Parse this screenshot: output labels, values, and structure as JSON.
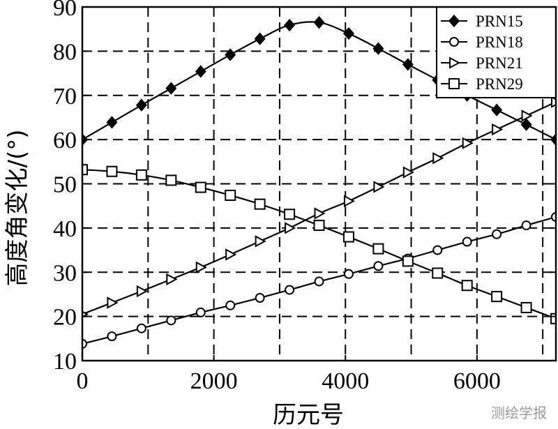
{
  "chart_data": {
    "type": "line",
    "xlabel": "历元号",
    "ylabel": "高度角变化/(°)",
    "xlim": [
      0,
      7200
    ],
    "ylim": [
      10,
      90
    ],
    "xticks": [
      0,
      2000,
      4000,
      6000
    ],
    "yticks": [
      10,
      20,
      30,
      40,
      50,
      60,
      70,
      80,
      90
    ],
    "grid": true,
    "legend_position": "top-right",
    "series": [
      {
        "name": "PRN15",
        "marker": "diamond-filled",
        "x": [
          0,
          450,
          900,
          1350,
          1800,
          2250,
          2700,
          3150,
          3600,
          4050,
          4500,
          4950,
          5400,
          5850,
          6300,
          6750,
          7200
        ],
        "y": [
          60.0,
          63.9,
          67.8,
          71.6,
          75.4,
          79.2,
          82.8,
          85.9,
          86.5,
          84.0,
          80.6,
          77.0,
          73.5,
          70.0,
          66.7,
          63.4,
          60.0
        ]
      },
      {
        "name": "PRN18",
        "marker": "circle-open",
        "x": [
          0,
          450,
          900,
          1350,
          1800,
          2250,
          2700,
          3150,
          3600,
          4050,
          4500,
          4950,
          5400,
          5850,
          6300,
          6750,
          7200
        ],
        "y": [
          13.8,
          15.5,
          17.3,
          19.1,
          20.9,
          22.5,
          24.2,
          26.0,
          27.9,
          29.6,
          31.4,
          33.1,
          35.0,
          36.9,
          38.6,
          40.6,
          42.5
        ]
      },
      {
        "name": "PRN21",
        "marker": "triangle-right-open",
        "x": [
          0,
          450,
          900,
          1350,
          1800,
          2250,
          2700,
          3150,
          3600,
          4050,
          4500,
          4950,
          5400,
          5850,
          6300,
          6750,
          7200
        ],
        "y": [
          20.5,
          23.1,
          25.7,
          28.4,
          31.1,
          34.0,
          37.0,
          40.0,
          43.3,
          46.1,
          49.3,
          52.6,
          55.8,
          59.2,
          62.3,
          65.4,
          68.5
        ]
      },
      {
        "name": "PRN29",
        "marker": "square-open",
        "x": [
          0,
          450,
          900,
          1350,
          1800,
          2250,
          2700,
          3150,
          3600,
          4050,
          4500,
          4950,
          5400,
          5850,
          6300,
          6750,
          7200
        ],
        "y": [
          53.2,
          52.8,
          52.0,
          50.8,
          49.2,
          47.4,
          45.4,
          43.1,
          40.6,
          38.0,
          35.3,
          32.5,
          29.8,
          27.0,
          24.5,
          22.0,
          19.5
        ]
      }
    ]
  },
  "watermark": "测绘学报"
}
